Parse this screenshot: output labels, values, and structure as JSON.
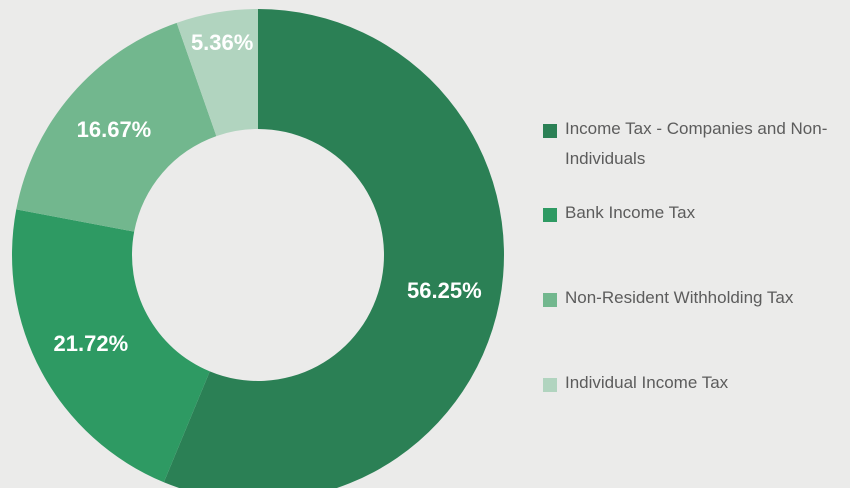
{
  "chart_data": {
    "type": "donut",
    "categories": [
      "Income Tax - Companies and Non-Individuals",
      "Bank Income Tax",
      "Non-Resident Withholding Tax",
      "Individual Income Tax"
    ],
    "values": [
      56.25,
      21.72,
      16.67,
      5.36
    ],
    "value_labels": [
      "56.25%",
      "21.72%",
      "16.67%",
      "5.36%"
    ],
    "colors": [
      "#2b8055",
      "#2e9a63",
      "#72b78e",
      "#b1d4bf"
    ],
    "legend": "right"
  }
}
